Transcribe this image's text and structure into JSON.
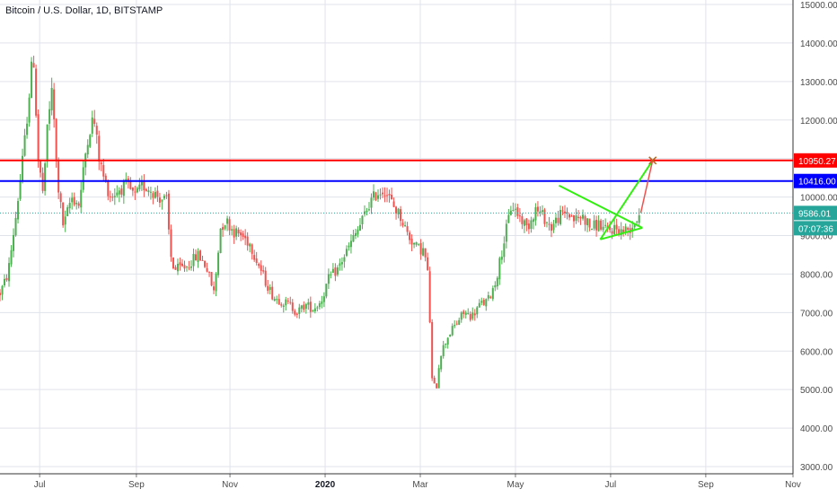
{
  "header": {
    "title": "Bitcoin / U.S. Dollar, 1D, BITSTAMP"
  },
  "colors": {
    "up": "#4caf50",
    "down": "#ef5350",
    "red_line": "#ff0000",
    "blue_line": "#0000ff",
    "green_draw": "#33ee11",
    "current": "#26a69a",
    "grid": "#e1e3eb"
  },
  "chart_data": {
    "type": "candlestick",
    "title": "Bitcoin / U.S. Dollar, 1D, BITSTAMP",
    "ylim": [
      3000,
      15000
    ],
    "y_ticks": [
      "3000.00",
      "4000.00",
      "5000.00",
      "6000.00",
      "7000.00",
      "8000.00",
      "9000.00",
      "10000.00",
      "11000.00",
      "12000.00",
      "13000.00",
      "14000.00",
      "15000.00"
    ],
    "x_ticks": [
      {
        "label": "Jul",
        "t": 0.05
      },
      {
        "label": "Sep",
        "t": 0.172
      },
      {
        "label": "Nov",
        "t": 0.29
      },
      {
        "label": "2020",
        "t": 0.41,
        "bold": true
      },
      {
        "label": "Mar",
        "t": 0.53
      },
      {
        "label": "May",
        "t": 0.65
      },
      {
        "label": "Jul",
        "t": 0.77
      },
      {
        "label": "Sep",
        "t": 0.89
      },
      {
        "label": "Nov",
        "t": 1.0
      }
    ],
    "price_path": [
      [
        0.0,
        7500
      ],
      [
        0.01,
        8000
      ],
      [
        0.02,
        9500
      ],
      [
        0.03,
        11200
      ],
      [
        0.036,
        12500
      ],
      [
        0.042,
        13800
      ],
      [
        0.048,
        11000
      ],
      [
        0.055,
        10000
      ],
      [
        0.06,
        12000
      ],
      [
        0.066,
        12800
      ],
      [
        0.072,
        10500
      ],
      [
        0.08,
        9200
      ],
      [
        0.09,
        10000
      ],
      [
        0.1,
        9800
      ],
      [
        0.11,
        11500
      ],
      [
        0.118,
        12100
      ],
      [
        0.125,
        11000
      ],
      [
        0.132,
        10400
      ],
      [
        0.14,
        10000
      ],
      [
        0.15,
        10200
      ],
      [
        0.16,
        10300
      ],
      [
        0.17,
        10000
      ],
      [
        0.18,
        10300
      ],
      [
        0.19,
        10200
      ],
      [
        0.2,
        10000
      ],
      [
        0.21,
        9900
      ],
      [
        0.215,
        8500
      ],
      [
        0.22,
        8100
      ],
      [
        0.235,
        8200
      ],
      [
        0.25,
        8500
      ],
      [
        0.26,
        8200
      ],
      [
        0.27,
        7500
      ],
      [
        0.278,
        9200
      ],
      [
        0.285,
        9400
      ],
      [
        0.295,
        9100
      ],
      [
        0.305,
        9000
      ],
      [
        0.315,
        8800
      ],
      [
        0.325,
        8300
      ],
      [
        0.335,
        7800
      ],
      [
        0.345,
        7400
      ],
      [
        0.355,
        7300
      ],
      [
        0.365,
        7200
      ],
      [
        0.375,
        7000
      ],
      [
        0.385,
        7200
      ],
      [
        0.395,
        7100
      ],
      [
        0.405,
        7300
      ],
      [
        0.415,
        7900
      ],
      [
        0.425,
        8100
      ],
      [
        0.435,
        8500
      ],
      [
        0.445,
        8900
      ],
      [
        0.455,
        9300
      ],
      [
        0.465,
        9800
      ],
      [
        0.475,
        10100
      ],
      [
        0.485,
        10200
      ],
      [
        0.495,
        9800
      ],
      [
        0.505,
        9500
      ],
      [
        0.515,
        9000
      ],
      [
        0.525,
        8700
      ],
      [
        0.535,
        8600
      ],
      [
        0.54,
        7900
      ],
      [
        0.545,
        5200
      ],
      [
        0.55,
        5000
      ],
      [
        0.555,
        5900
      ],
      [
        0.565,
        6400
      ],
      [
        0.575,
        6700
      ],
      [
        0.585,
        7000
      ],
      [
        0.595,
        6900
      ],
      [
        0.605,
        7200
      ],
      [
        0.615,
        7300
      ],
      [
        0.625,
        7800
      ],
      [
        0.635,
        8800
      ],
      [
        0.64,
        9300
      ],
      [
        0.645,
        9800
      ],
      [
        0.655,
        9500
      ],
      [
        0.665,
        9200
      ],
      [
        0.675,
        9700
      ],
      [
        0.685,
        9500
      ],
      [
        0.695,
        9200
      ],
      [
        0.705,
        9500
      ],
      [
        0.715,
        9600
      ],
      [
        0.725,
        9400
      ],
      [
        0.735,
        9500
      ],
      [
        0.745,
        9200
      ],
      [
        0.755,
        9300
      ],
      [
        0.765,
        9100
      ],
      [
        0.775,
        9200
      ],
      [
        0.785,
        9100
      ],
      [
        0.795,
        9200
      ],
      [
        0.802,
        9400
      ],
      [
        0.806,
        9586
      ]
    ],
    "horizontal_lines": [
      {
        "value": 10950.27,
        "label": "10950.27",
        "color": "#ff0000"
      },
      {
        "value": 10416.0,
        "label": "10416.00",
        "color": "#0000ff"
      }
    ],
    "current_price": {
      "value": 9586.01,
      "label": "9586.01",
      "countdown": "07:07:36"
    },
    "drawings": {
      "triangle_upper": [
        [
          0.705,
          10300
        ],
        [
          0.81,
          9200
        ]
      ],
      "triangle_lower": [
        [
          0.757,
          8900
        ],
        [
          0.81,
          9200
        ]
      ],
      "breakout_green": [
        [
          0.757,
          8900
        ],
        [
          0.823,
          10950.27
        ]
      ],
      "projection_red": [
        [
          0.808,
          9586
        ],
        [
          0.823,
          10950.27
        ]
      ]
    }
  }
}
